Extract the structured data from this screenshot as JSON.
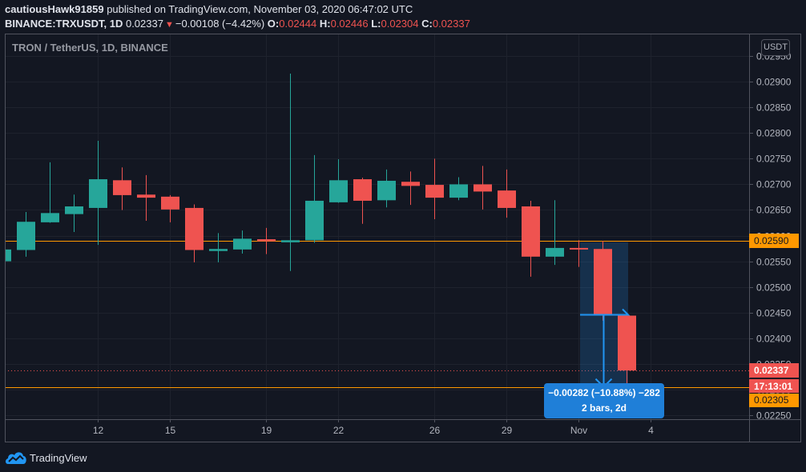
{
  "header": {
    "username": "cautiousHawk91859",
    "published_text": " published on TradingView.com, November 03, 2020 06:47:02 UTC",
    "symbol": "BINANCE:TRXUSDT, 1D",
    "last_price": "0.02337",
    "change": "−0.00108 (−4.42%)",
    "ohlc": {
      "o_label": "O:",
      "o": "0.02444",
      "h_label": "H:",
      "h": "0.02446",
      "l_label": "L:",
      "l": "0.02304",
      "c_label": "C:",
      "c": "0.02337"
    }
  },
  "legend": {
    "title": "TRON / TetherUS, 1D, BINANCE"
  },
  "price_axis": {
    "currency_button": "USDT",
    "labels": {
      "upper_line": "0.02590",
      "last_price": "0.02337",
      "countdown": "17:13:01",
      "lower_line": "0.02305"
    }
  },
  "measure": {
    "line1": "−0.00282 (−10.88%) −282",
    "line2": "2 bars, 2d"
  },
  "brand": {
    "name": "TradingView"
  },
  "colors": {
    "background": "#131722",
    "grid": "#1e222d",
    "up": "#26a69a",
    "down": "#ef5350",
    "hline": "#ff9800",
    "measure": "#2196f3",
    "axis_text": "#b2b5be"
  },
  "chart_data": {
    "type": "candlestick",
    "title": "TRON / TetherUS, 1D, BINANCE",
    "xlabel": "",
    "ylabel": "USDT",
    "ylim": [
      0.02242,
      0.02994
    ],
    "grid": true,
    "y_ticks": [
      "0.02950",
      "0.02900",
      "0.02850",
      "0.02800",
      "0.02750",
      "0.02700",
      "0.02650",
      "0.02600",
      "0.02550",
      "0.02500",
      "0.02450",
      "0.02400",
      "0.02350",
      "0.02300",
      "0.02250"
    ],
    "x_ticks": [
      {
        "label": "12",
        "index": 4
      },
      {
        "label": "15",
        "index": 7
      },
      {
        "label": "19",
        "index": 11
      },
      {
        "label": "22",
        "index": 14
      },
      {
        "label": "26",
        "index": 18
      },
      {
        "label": "29",
        "index": 21
      },
      {
        "label": "Nov",
        "index": 24
      },
      {
        "label": "4",
        "index": 27
      }
    ],
    "candles": [
      {
        "date": "Oct 8",
        "o": 0.0255,
        "h": 0.02573,
        "l": 0.0255,
        "c": 0.02573
      },
      {
        "date": "Oct 9",
        "o": 0.02572,
        "h": 0.02646,
        "l": 0.02559,
        "c": 0.02627
      },
      {
        "date": "Oct 10",
        "o": 0.02626,
        "h": 0.02743,
        "l": 0.02625,
        "c": 0.02644
      },
      {
        "date": "Oct 11",
        "o": 0.02642,
        "h": 0.0268,
        "l": 0.02607,
        "c": 0.02657
      },
      {
        "date": "Oct 12",
        "o": 0.02654,
        "h": 0.02785,
        "l": 0.02582,
        "c": 0.0271
      },
      {
        "date": "Oct 13",
        "o": 0.02708,
        "h": 0.02733,
        "l": 0.0265,
        "c": 0.02679
      },
      {
        "date": "Oct 14",
        "o": 0.0268,
        "h": 0.02718,
        "l": 0.02629,
        "c": 0.02674
      },
      {
        "date": "Oct 15",
        "o": 0.02676,
        "h": 0.02679,
        "l": 0.02626,
        "c": 0.02651
      },
      {
        "date": "Oct 16",
        "o": 0.02654,
        "h": 0.02661,
        "l": 0.02548,
        "c": 0.02572
      },
      {
        "date": "Oct 17",
        "o": 0.0257,
        "h": 0.02605,
        "l": 0.02548,
        "c": 0.02574
      },
      {
        "date": "Oct 18",
        "o": 0.02573,
        "h": 0.0261,
        "l": 0.02565,
        "c": 0.02594
      },
      {
        "date": "Oct 19",
        "o": 0.02593,
        "h": 0.02615,
        "l": 0.02564,
        "c": 0.02589
      },
      {
        "date": "Oct 20",
        "o": 0.02587,
        "h": 0.02916,
        "l": 0.02531,
        "c": 0.02591
      },
      {
        "date": "Oct 21",
        "o": 0.02591,
        "h": 0.02757,
        "l": 0.02586,
        "c": 0.02668
      },
      {
        "date": "Oct 22",
        "o": 0.02665,
        "h": 0.02749,
        "l": 0.02664,
        "c": 0.02708
      },
      {
        "date": "Oct 23",
        "o": 0.0271,
        "h": 0.02713,
        "l": 0.02623,
        "c": 0.02668
      },
      {
        "date": "Oct 24",
        "o": 0.02669,
        "h": 0.02729,
        "l": 0.02655,
        "c": 0.02707
      },
      {
        "date": "Oct 25",
        "o": 0.02705,
        "h": 0.02725,
        "l": 0.0266,
        "c": 0.02697
      },
      {
        "date": "Oct 26",
        "o": 0.02699,
        "h": 0.0275,
        "l": 0.02632,
        "c": 0.02674
      },
      {
        "date": "Oct 27",
        "o": 0.02674,
        "h": 0.02714,
        "l": 0.02669,
        "c": 0.027
      },
      {
        "date": "Oct 28",
        "o": 0.027,
        "h": 0.02736,
        "l": 0.02651,
        "c": 0.02686
      },
      {
        "date": "Oct 29",
        "o": 0.02688,
        "h": 0.02729,
        "l": 0.02635,
        "c": 0.02654
      },
      {
        "date": "Oct 30",
        "o": 0.02657,
        "h": 0.02668,
        "l": 0.0252,
        "c": 0.02559
      },
      {
        "date": "Oct 31",
        "o": 0.02559,
        "h": 0.02669,
        "l": 0.02543,
        "c": 0.02576
      },
      {
        "date": "Nov 1",
        "o": 0.02576,
        "h": 0.02591,
        "l": 0.02539,
        "c": 0.02573
      },
      {
        "date": "Nov 2",
        "o": 0.02574,
        "h": 0.0259,
        "l": 0.02434,
        "c": 0.02444
      },
      {
        "date": "Nov 3",
        "o": 0.02444,
        "h": 0.02446,
        "l": 0.02304,
        "c": 0.02337
      }
    ],
    "horizontal_lines": [
      {
        "price": 0.0259,
        "label": "0.02590",
        "style": "solid",
        "color": "#ff9800"
      },
      {
        "price": 0.02305,
        "label": "0.02305",
        "style": "solid",
        "color": "#ff9800"
      },
      {
        "price": 0.02337,
        "label": "0.02337",
        "style": "dotted",
        "color": "#ef5350"
      }
    ],
    "measurement": {
      "start_index": 24,
      "end_index": 26,
      "start_price": 0.02587,
      "end_price": 0.02305,
      "change": -0.00282,
      "change_pct": -10.88,
      "ticks": -282,
      "bars": 2,
      "duration": "2d"
    },
    "annotations": [
      "−0.00282 (−10.88%) −282",
      "2 bars, 2d"
    ]
  }
}
